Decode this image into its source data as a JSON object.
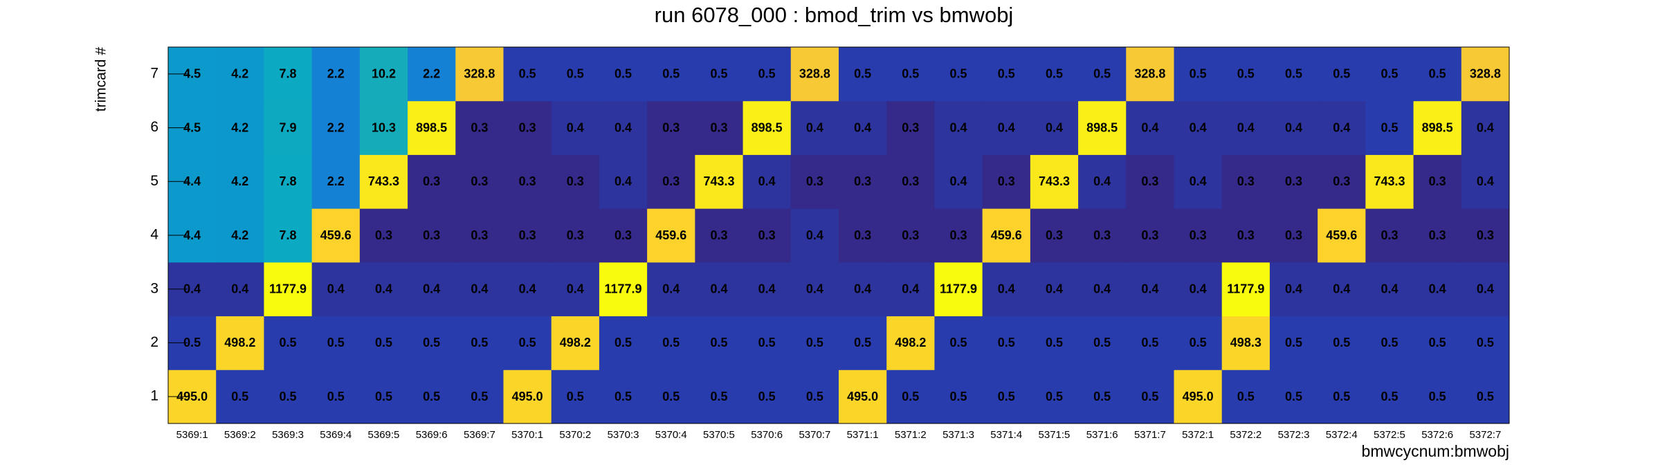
{
  "chart_data": {
    "type": "heatmap",
    "title": "run 6078_000 : bmod_trim vs bmwobj",
    "x_label": "bmwcycnum:bmwobj",
    "y_label": "trimcard #",
    "categories": [
      "5369:1",
      "5369:2",
      "5369:3",
      "5369:4",
      "5369:5",
      "5369:6",
      "5369:7",
      "5370:1",
      "5370:2",
      "5370:3",
      "5370:4",
      "5370:5",
      "5370:6",
      "5370:7",
      "5371:1",
      "5371:2",
      "5371:3",
      "5371:4",
      "5371:5",
      "5371:6",
      "5371:7",
      "5372:1",
      "5372:2",
      "5372:3",
      "5372:4",
      "5372:5",
      "5372:6",
      "5372:7"
    ],
    "ylim": [
      0.5,
      7.5
    ],
    "yticks": [
      1,
      2,
      3,
      4,
      5,
      6,
      7
    ],
    "values": [
      [
        495,
        0.5,
        0.5,
        0.5,
        0.5,
        0.5,
        0.5,
        495,
        0.5,
        0.5,
        0.5,
        0.5,
        0.5,
        0.5,
        495,
        0.5,
        0.5,
        0.5,
        0.5,
        0.5,
        0.5,
        495,
        0.5,
        0.5,
        0.5,
        0.5,
        0.5,
        0.5
      ],
      [
        0.5,
        498.2,
        0.5,
        0.5,
        0.5,
        0.5,
        0.5,
        0.5,
        498.2,
        0.5,
        0.5,
        0.5,
        0.5,
        0.5,
        0.5,
        498.2,
        0.5,
        0.5,
        0.5,
        0.5,
        0.5,
        0.5,
        498.3,
        0.5,
        0.5,
        0.5,
        0.5,
        0.5
      ],
      [
        0.4,
        0.4,
        1177.9,
        0.4,
        0.4,
        0.4,
        0.4,
        0.4,
        0.4,
        1177.9,
        0.4,
        0.4,
        0.4,
        0.4,
        0.4,
        0.4,
        1177.9,
        0.4,
        0.4,
        0.4,
        0.4,
        0.4,
        1177.9,
        0.4,
        0.4,
        0.4,
        0.4,
        0.4
      ],
      [
        4.4,
        4.2,
        7.8,
        459.6,
        0.3,
        0.3,
        0.3,
        0.3,
        0.3,
        0.3,
        459.6,
        0.3,
        0.3,
        0.4,
        0.3,
        0.3,
        0.3,
        459.6,
        0.3,
        0.3,
        0.3,
        0.3,
        0.3,
        0.3,
        459.6,
        0.3,
        0.3,
        0.3
      ],
      [
        4.4,
        4.2,
        7.8,
        2.2,
        743.3,
        0.3,
        0.3,
        0.3,
        0.3,
        0.4,
        0.3,
        743.3,
        0.4,
        0.3,
        0.3,
        0.3,
        0.4,
        0.3,
        743.3,
        0.4,
        0.3,
        0.4,
        0.3,
        0.3,
        0.3,
        743.3,
        0.3,
        0.4
      ],
      [
        4.5,
        4.2,
        7.9,
        2.2,
        10.3,
        898.5,
        0.3,
        0.3,
        0.4,
        0.4,
        0.3,
        0.3,
        898.5,
        0.4,
        0.4,
        0.3,
        0.4,
        0.4,
        0.4,
        898.5,
        0.4,
        0.4,
        0.4,
        0.4,
        0.4,
        0.5,
        898.5,
        0.4
      ],
      [
        4.5,
        4.2,
        7.8,
        2.2,
        10.2,
        2.2,
        328.8,
        0.5,
        0.5,
        0.5,
        0.5,
        0.5,
        0.5,
        328.8,
        0.5,
        0.5,
        0.5,
        0.5,
        0.5,
        0.5,
        328.8,
        0.5,
        0.5,
        0.5,
        0.5,
        0.5,
        0.5,
        328.8
      ]
    ],
    "value_labels": [
      [
        "495.0",
        null,
        null,
        null,
        null,
        null,
        null,
        "495.0",
        null,
        null,
        null,
        null,
        null,
        null,
        "495.0",
        null,
        null,
        null,
        null,
        null,
        null,
        "495.0",
        null,
        null,
        null,
        null,
        null,
        null
      ],
      null,
      null,
      null,
      null,
      null,
      null
    ],
    "zlog": true,
    "zlim": [
      0.3,
      1177.9
    ],
    "palette": [
      "#35298a",
      "#1a50d0",
      "#1485d4",
      "#06a7c6",
      "#2bb2a8",
      "#92bf73",
      "#e8bc4a",
      "#fcce2e",
      "#f9fb0e"
    ]
  }
}
